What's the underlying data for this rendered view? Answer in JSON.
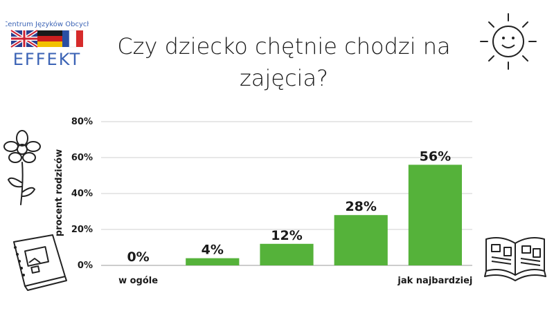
{
  "logo": {
    "text_top": "Centrum Języków Obcych",
    "text_main": "EFFEKT"
  },
  "title_lines": [
    "Czy dziecko chętnie chodzi na",
    "zajęcia?"
  ],
  "colors": {
    "bar": "#55b23a",
    "grid": "#cfcfcf",
    "text": "#1a1a1a",
    "logo_blue": "#3b63b5"
  },
  "chart_data": {
    "type": "bar",
    "title": "Czy dziecko chętnie chodzi na zajęcia?",
    "ylabel": "procent rodziców",
    "categories": [
      "w ogóle",
      "",
      "",
      "",
      "jak najbardziej"
    ],
    "values": [
      0,
      4,
      12,
      28,
      56
    ],
    "value_labels": [
      "0%",
      "4%",
      "12%",
      "28%",
      "56%"
    ],
    "yticks": [
      "0%",
      "20%",
      "40%",
      "60%",
      "80%"
    ],
    "ylim": [
      0,
      80
    ],
    "grid": true,
    "legend": "none"
  },
  "icons": [
    "sun-icon",
    "flower-icon",
    "notebook-icon",
    "open-book-icon"
  ]
}
